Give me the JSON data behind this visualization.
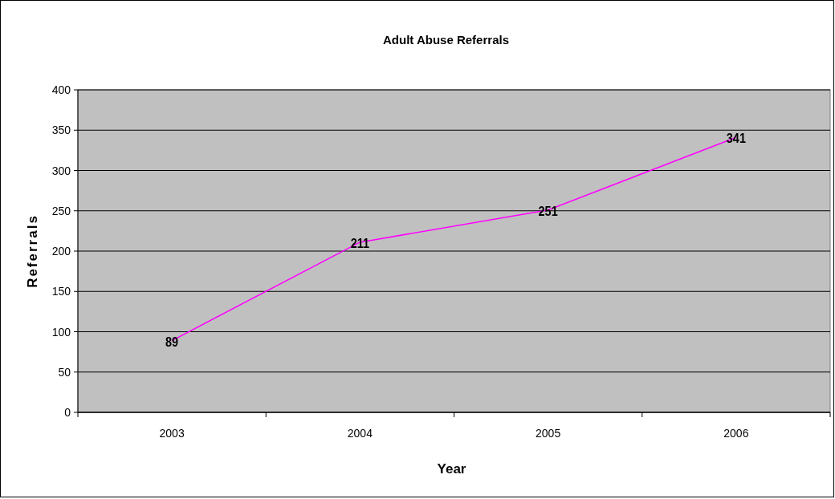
{
  "chart_data": {
    "type": "line",
    "title": "Adult Abuse Referrals",
    "xlabel": "Year",
    "ylabel": "Referrals",
    "categories": [
      "2003",
      "2004",
      "2005",
      "2006"
    ],
    "series": [
      {
        "color": "#ff00ff",
        "values": [
          89,
          211,
          251,
          341
        ]
      }
    ],
    "ylim": [
      0,
      400
    ],
    "yticks": [
      0,
      50,
      100,
      150,
      200,
      250,
      300,
      350,
      400
    ],
    "grid": "y",
    "data_labels": true,
    "marker": "none"
  }
}
